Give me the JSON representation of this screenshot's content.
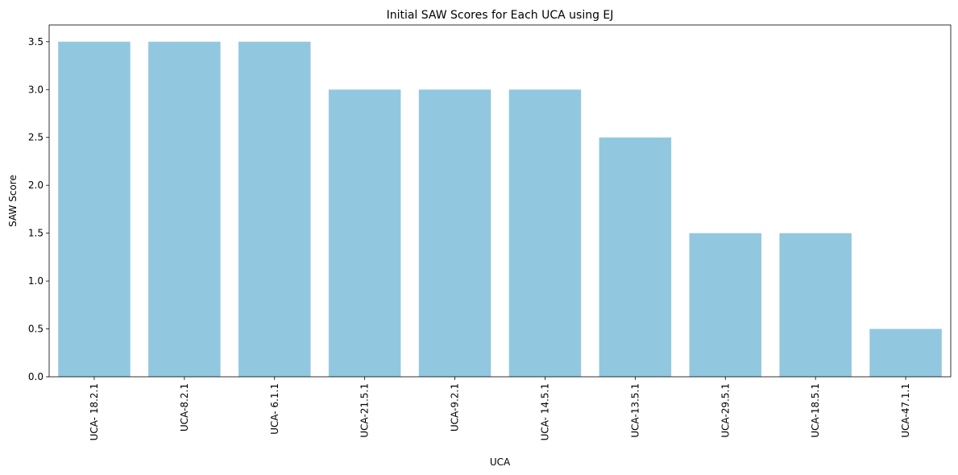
{
  "chart_data": {
    "type": "bar",
    "title": "Initial SAW Scores for Each UCA using EJ",
    "xlabel": "UCA",
    "ylabel": "SAW Score",
    "categories": [
      "UCA- 18.2.1",
      "UCA-8.2.1",
      "UCA- 6.1.1",
      "UCA-21.5.1",
      "UCA-9.2.1",
      "UCA- 14.5.1",
      "UCA-13.5.1",
      "UCA-29.5.1",
      "UCA-18.5.1",
      "UCA-47.1.1"
    ],
    "values": [
      3.5,
      3.5,
      3.5,
      3.0,
      3.0,
      3.0,
      2.5,
      1.5,
      1.5,
      0.5
    ],
    "ylim": [
      0,
      3.675
    ],
    "yticks": [
      0.0,
      0.5,
      1.0,
      1.5,
      2.0,
      2.5,
      3.0,
      3.5
    ],
    "ytick_labels": [
      "0.0",
      "0.5",
      "1.0",
      "1.5",
      "2.0",
      "2.5",
      "3.0",
      "3.5"
    ],
    "grid": false,
    "bar_color": "#92c8df"
  }
}
